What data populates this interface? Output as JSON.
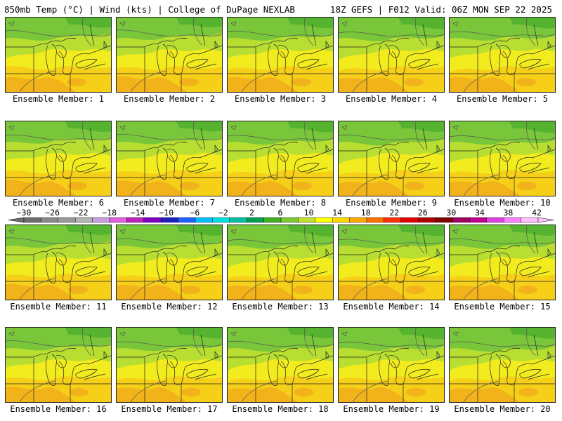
{
  "header": {
    "left": "850mb Temp (°C) | Wind (kts) | College of DuPage NEXLAB",
    "right": "18Z GEFS | F012 Valid: 06Z MON SEP 22 2025"
  },
  "member_label_prefix": "Ensemble Member: ",
  "members": [
    "1",
    "2",
    "3",
    "4",
    "5",
    "6",
    "7",
    "8",
    "9",
    "10",
    "11",
    "12",
    "13",
    "14",
    "15",
    "16",
    "17",
    "18",
    "19",
    "20"
  ],
  "colorbar": {
    "labels": [
      "−30",
      "−26",
      "−22",
      "−18",
      "−14",
      "−10",
      "−6",
      "−2",
      "2",
      "6",
      "10",
      "14",
      "18",
      "22",
      "26",
      "30",
      "34",
      "38",
      "42"
    ],
    "colors": [
      "#6e6e6e",
      "#8a8a8a",
      "#9a9a9a",
      "#b4b4b4",
      "#c8a0e0",
      "#e060e0",
      "#c020c0",
      "#8000c0",
      "#2020c0",
      "#2060ff",
      "#00c0ff",
      "#00e0e0",
      "#00c0a0",
      "#00a050",
      "#40b020",
      "#80c830",
      "#c0e030",
      "#ffff00",
      "#ffd800",
      "#ffa800",
      "#ff7000",
      "#ff3000",
      "#e00000",
      "#b00000",
      "#800000",
      "#a00060",
      "#c00090",
      "#e040e0",
      "#ff80ff",
      "#ffc0ff"
    ],
    "palette": {
      "green_dark": "#55b330",
      "green": "#79c63a",
      "yellow_green": "#b9de32",
      "yellow": "#f2ec1e",
      "orange_light": "#f5cf18",
      "orange": "#f2b21a"
    }
  }
}
